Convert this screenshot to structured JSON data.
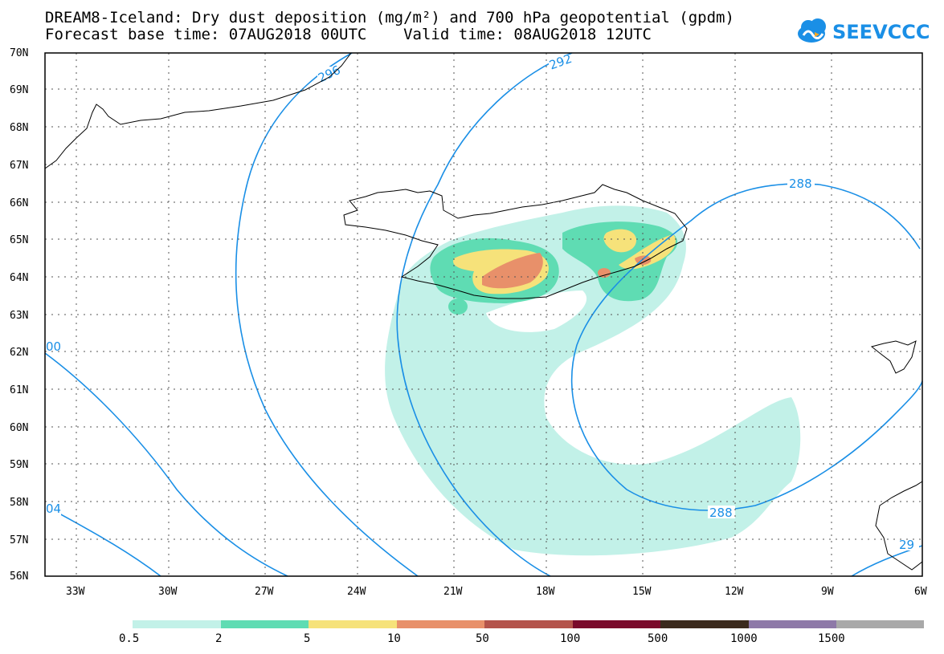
{
  "header": {
    "title_line1": "DREAM8-Iceland: Dry dust deposition (mg/m²) and 700 hPa geopotential (gpdm)",
    "title_line2": "Forecast base time: 07AUG2018 00UTC    Valid time: 08AUG2018 12UTC",
    "logo_text": "SEEVCCC"
  },
  "axes": {
    "lat_labels": [
      "70N",
      "69N",
      "68N",
      "67N",
      "66N",
      "65N",
      "64N",
      "63N",
      "62N",
      "61N",
      "60N",
      "59N",
      "58N",
      "57N",
      "56N"
    ],
    "lon_labels": [
      "33W",
      "30W",
      "27W",
      "24W",
      "21W",
      "18W",
      "15W",
      "12W",
      "9W",
      "6W"
    ]
  },
  "contours": {
    "line_color": "#1a8fe6",
    "labels": [
      "296",
      "292",
      "288",
      "288",
      "00",
      "04",
      "29"
    ]
  },
  "legend": {
    "colors": [
      "#c2f1e8",
      "#5fdcb3",
      "#f6e27a",
      "#e8906a",
      "#b4544b",
      "#7a0a2b",
      "#3b2a1d",
      "#8e79a8",
      "#a9a9a9"
    ],
    "labels": [
      "0.5",
      "2",
      "5",
      "10",
      "50",
      "100",
      "500",
      "1000",
      "1500"
    ]
  },
  "fields": {
    "dust_colors": {
      "light": "#c2f1e8",
      "green": "#5fdcb3",
      "yellow": "#f6e27a",
      "orange": "#e8906a",
      "red": "#b4544b"
    },
    "coast_color": "#000000"
  }
}
